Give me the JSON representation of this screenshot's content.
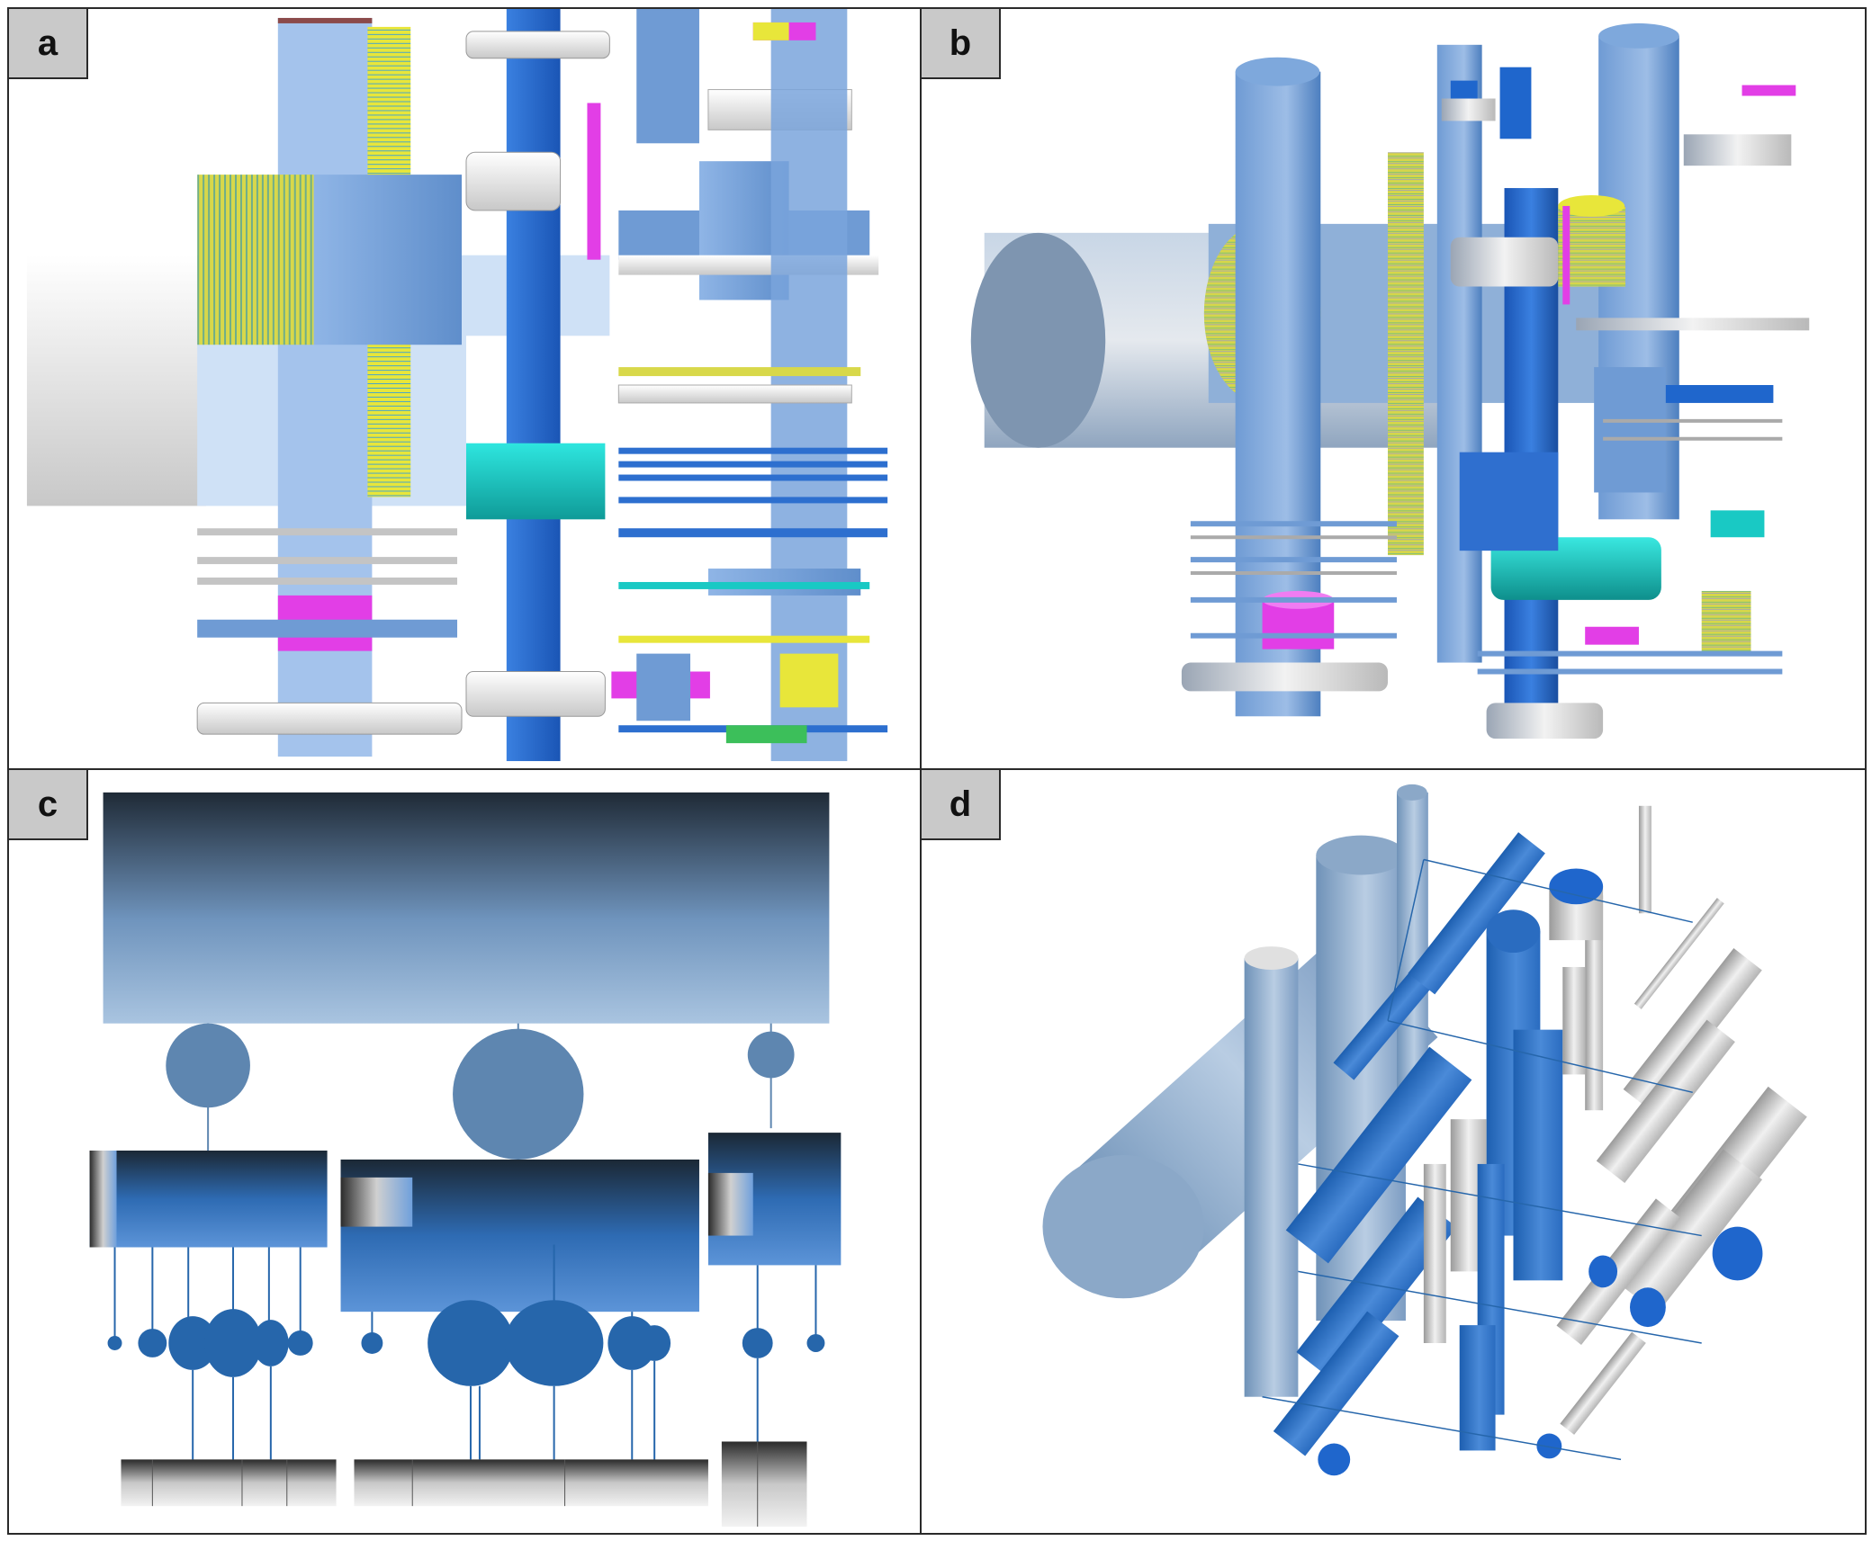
{
  "panels": [
    {
      "id": "a",
      "label": "a"
    },
    {
      "id": "b",
      "label": "b"
    },
    {
      "id": "c",
      "label": "c"
    },
    {
      "id": "d",
      "label": "d"
    }
  ],
  "colors": {
    "steel_blue": "#6f9bd4",
    "light_blue": "#a9c8ef",
    "royal_blue": "#1f66cc",
    "grey": "#cfcfcf",
    "yellow": "#e4e22c",
    "magenta": "#e23ee6",
    "cyan": "#19c9c4",
    "dark_navy": "#1f2a36",
    "pale_blue": "#9ab8d8",
    "node_blue": "#5e86b0",
    "dark_node_blue": "#2666ab"
  },
  "icons": {
    "panel_a": "flat-cylinder-icicle-layout",
    "panel_b": "perspective-cylinder-cluster",
    "panel_c": "node-link-cylinder-hierarchy",
    "panel_d": "3d-cylinder-grid"
  }
}
